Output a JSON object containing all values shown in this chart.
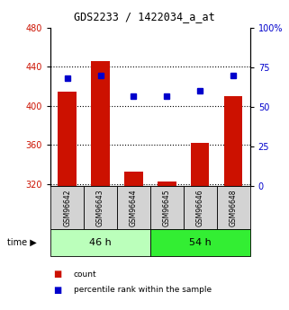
{
  "title": "GDS2233 / 1422034_a_at",
  "samples": [
    "GSM96642",
    "GSM96643",
    "GSM96644",
    "GSM96645",
    "GSM96646",
    "GSM96648"
  ],
  "counts": [
    415,
    446,
    333,
    323,
    362,
    410
  ],
  "percentiles": [
    68,
    70,
    57,
    57,
    60,
    70
  ],
  "ylim_left": [
    318,
    480
  ],
  "ylim_right": [
    0,
    100
  ],
  "yticks_left": [
    320,
    360,
    400,
    440,
    480
  ],
  "yticks_right": [
    0,
    25,
    50,
    75,
    100
  ],
  "bar_color": "#cc1100",
  "dot_color": "#0000cc",
  "groups": [
    {
      "label": "46 h",
      "indices": [
        0,
        1,
        2
      ],
      "color": "#bbffbb"
    },
    {
      "label": "54 h",
      "indices": [
        3,
        4,
        5
      ],
      "color": "#33ee33"
    }
  ],
  "legend_items": [
    {
      "label": "count",
      "color": "#cc1100"
    },
    {
      "label": "percentile rank within the sample",
      "color": "#0000cc"
    }
  ],
  "background_color": "#ffffff",
  "tick_label_color_left": "#cc1100",
  "tick_label_color_right": "#0000cc"
}
